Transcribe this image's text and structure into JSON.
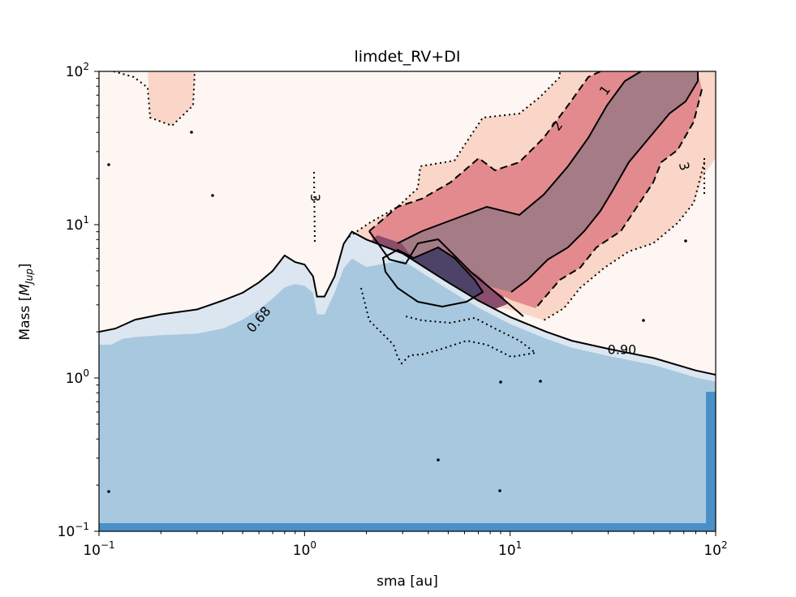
{
  "chart_data": {
    "type": "contour",
    "title": "limdet_RV+DI",
    "xlabel": "sma [au]",
    "ylabel_main": "Mass [",
    "ylabel_math": "M",
    "ylabel_sub": "Jup",
    "ylabel_close": "]",
    "xscale": "log",
    "yscale": "log",
    "xlim": [
      0.1,
      100
    ],
    "ylim": [
      0.1,
      100
    ],
    "xticks": [
      {
        "value": 0.1,
        "base": "10",
        "exp": "−1"
      },
      {
        "value": 1,
        "base": "10",
        "exp": "0"
      },
      {
        "value": 10,
        "base": "10",
        "exp": "1"
      },
      {
        "value": 100,
        "base": "10",
        "exp": "2"
      }
    ],
    "yticks": [
      {
        "value": 0.1,
        "base": "10",
        "exp": "−1"
      },
      {
        "value": 1,
        "base": "10",
        "exp": "0"
      },
      {
        "value": 10,
        "base": "10",
        "exp": "1"
      },
      {
        "value": 100,
        "base": "10",
        "exp": "2"
      }
    ],
    "colors": {
      "blue_dark": "#4a90c8",
      "blue_fill": "#a8c8df",
      "blue_light": "#dce6f0",
      "red_bg": "#fdf6f3",
      "red_3": "#f9d6c8",
      "red_2": "#e28a8d",
      "red_1": "#a57b85",
      "purple_a": "#8a4d6b",
      "purple_b": "#4d4368",
      "gray": "#a8a8b4"
    },
    "detection_limit_levels": [
      {
        "label": "0.68",
        "x": 0.6,
        "y": 2.4
      },
      {
        "label": "0.90",
        "x": 35,
        "y": 1.52
      }
    ],
    "sigma_levels": [
      {
        "label": "1",
        "x": 29,
        "y": 75
      },
      {
        "label": "2",
        "x": 17,
        "y": 44
      },
      {
        "label": "3",
        "x": 70,
        "y": 24
      },
      {
        "label": "3",
        "x": 1.12,
        "y": 15
      }
    ],
    "curve_0_68": [
      [
        0.1,
        1.65
      ],
      [
        0.115,
        1.65
      ],
      [
        0.13,
        1.8
      ],
      [
        0.15,
        1.85
      ],
      [
        0.2,
        1.9
      ],
      [
        0.3,
        1.95
      ],
      [
        0.4,
        2.1
      ],
      [
        0.5,
        2.4
      ],
      [
        0.6,
        2.8
      ],
      [
        0.7,
        3.3
      ],
      [
        0.8,
        3.9
      ],
      [
        0.9,
        4.1
      ],
      [
        1.0,
        4.0
      ],
      [
        1.1,
        3.6
      ],
      [
        1.15,
        2.6
      ],
      [
        1.25,
        2.6
      ],
      [
        1.4,
        3.6
      ],
      [
        1.55,
        5.2
      ],
      [
        1.7,
        6.0
      ],
      [
        2.0,
        5.3
      ]
    ],
    "curve_0_90": [
      [
        0.1,
        2.0
      ],
      [
        0.12,
        2.1
      ],
      [
        0.15,
        2.4
      ],
      [
        0.2,
        2.6
      ],
      [
        0.3,
        2.8
      ],
      [
        0.4,
        3.2
      ],
      [
        0.5,
        3.6
      ],
      [
        0.6,
        4.2
      ],
      [
        0.7,
        5.0
      ],
      [
        0.8,
        6.3
      ],
      [
        0.9,
        5.7
      ],
      [
        1.0,
        5.5
      ],
      [
        1.1,
        4.6
      ],
      [
        1.15,
        3.4
      ],
      [
        1.25,
        3.4
      ],
      [
        1.4,
        4.6
      ],
      [
        1.55,
        7.5
      ],
      [
        1.7,
        9.0
      ],
      [
        2.0,
        8.0
      ],
      [
        3.0,
        6.5
      ],
      [
        5.0,
        4.2
      ],
      [
        7.0,
        3.2
      ],
      [
        10,
        2.5
      ],
      [
        15,
        2.0
      ],
      [
        20,
        1.75
      ],
      [
        30,
        1.55
      ],
      [
        50,
        1.35
      ],
      [
        80,
        1.12
      ],
      [
        100,
        1.05
      ]
    ],
    "blue_dark_bottom": 0.115,
    "blue_dark_right_x": 90,
    "blue_dark_right_top": 0.8
  }
}
